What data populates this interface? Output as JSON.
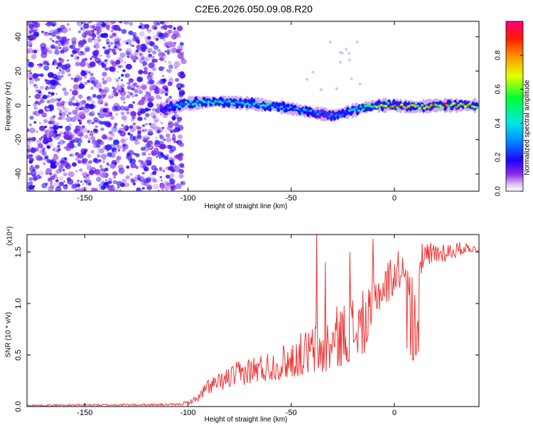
{
  "title": "C2E6.2026.050.09.08.R20",
  "chart_data": [
    {
      "type": "heatmap",
      "name": "spectrogram",
      "xlabel": "Height of straight line (km)",
      "ylabel": "Frequency (Hz)",
      "xlim": [
        -178,
        41
      ],
      "ylim": [
        -50,
        49
      ],
      "xticks": [
        -150,
        -100,
        -50,
        0
      ],
      "yticks": [
        -40,
        -20,
        0,
        20,
        40
      ],
      "colorbar": {
        "label": "Normalized spectral amplitude",
        "range": [
          0,
          1
        ],
        "ticks": [
          0.0,
          0.2,
          0.4,
          0.6,
          0.8
        ],
        "tick_labels": [
          "0.0",
          "0.2",
          "0.4",
          "0.6",
          "0.8"
        ]
      },
      "noise_region": {
        "x_range": [
          -178,
          -102
        ],
        "y_range": [
          -50,
          49
        ],
        "value": 0.12
      },
      "signal_ridge": {
        "x": [
          -113,
          -100,
          -90,
          -80,
          -70,
          -60,
          -50,
          -40,
          -35,
          -30,
          -20,
          -10,
          0,
          10,
          20,
          30,
          40
        ],
        "freq": [
          -2,
          1,
          2,
          2,
          1,
          0,
          -2,
          -4,
          -5,
          -6,
          -3,
          0,
          0,
          -1,
          0,
          0,
          0
        ],
        "peak_amplitude": [
          0.25,
          0.45,
          0.5,
          0.45,
          0.45,
          0.4,
          0.35,
          0.35,
          0.25,
          0.3,
          0.4,
          0.6,
          0.85,
          0.8,
          0.85,
          0.8,
          0.65
        ]
      }
    },
    {
      "type": "line",
      "name": "snr",
      "xlabel": "Height of straight line (km)",
      "ylabel": "SNR (10 * v/v)",
      "y_multiplier": "(x10⁴)",
      "xlim": [
        -178,
        41
      ],
      "ylim": [
        0,
        1.67
      ],
      "xticks": [
        -150,
        -100,
        -50,
        0
      ],
      "yticks": [
        0.0,
        0.5,
        1.0,
        1.5
      ],
      "ytick_labels": [
        "0.0",
        "0.5",
        "1.0",
        "1.5"
      ],
      "color": "#ee3333",
      "envelope": {
        "x": [
          -178,
          -105,
          -100,
          -95,
          -90,
          -85,
          -80,
          -70,
          -60,
          -50,
          -40,
          -35,
          -30,
          -20,
          -12,
          -10,
          -5,
          0,
          5,
          10,
          15,
          20,
          30,
          35,
          40
        ],
        "low": [
          0.005,
          0.01,
          0.02,
          0.05,
          0.12,
          0.15,
          0.18,
          0.22,
          0.25,
          0.28,
          0.32,
          0.3,
          0.35,
          0.45,
          0.55,
          0.9,
          0.95,
          1.1,
          1.2,
          1.25,
          1.3,
          1.38,
          1.45,
          1.5,
          1.5
        ],
        "high": [
          0.02,
          0.03,
          0.06,
          0.12,
          0.3,
          0.32,
          0.4,
          0.5,
          0.55,
          0.65,
          0.8,
          0.85,
          0.95,
          1.1,
          1.15,
          1.3,
          1.4,
          1.5,
          1.55,
          1.55,
          1.6,
          1.62,
          1.6,
          1.6,
          1.55
        ]
      },
      "spikes": [
        {
          "x": -37.5,
          "y": 1.67
        },
        {
          "x": -33.5,
          "y": 1.4
        },
        {
          "x": -21.5,
          "y": 1.5
        },
        {
          "x": -10.5,
          "y": 1.63
        },
        {
          "x": 9.0,
          "y": 0.45
        },
        {
          "x": 8.0,
          "y": 0.5
        }
      ]
    }
  ]
}
